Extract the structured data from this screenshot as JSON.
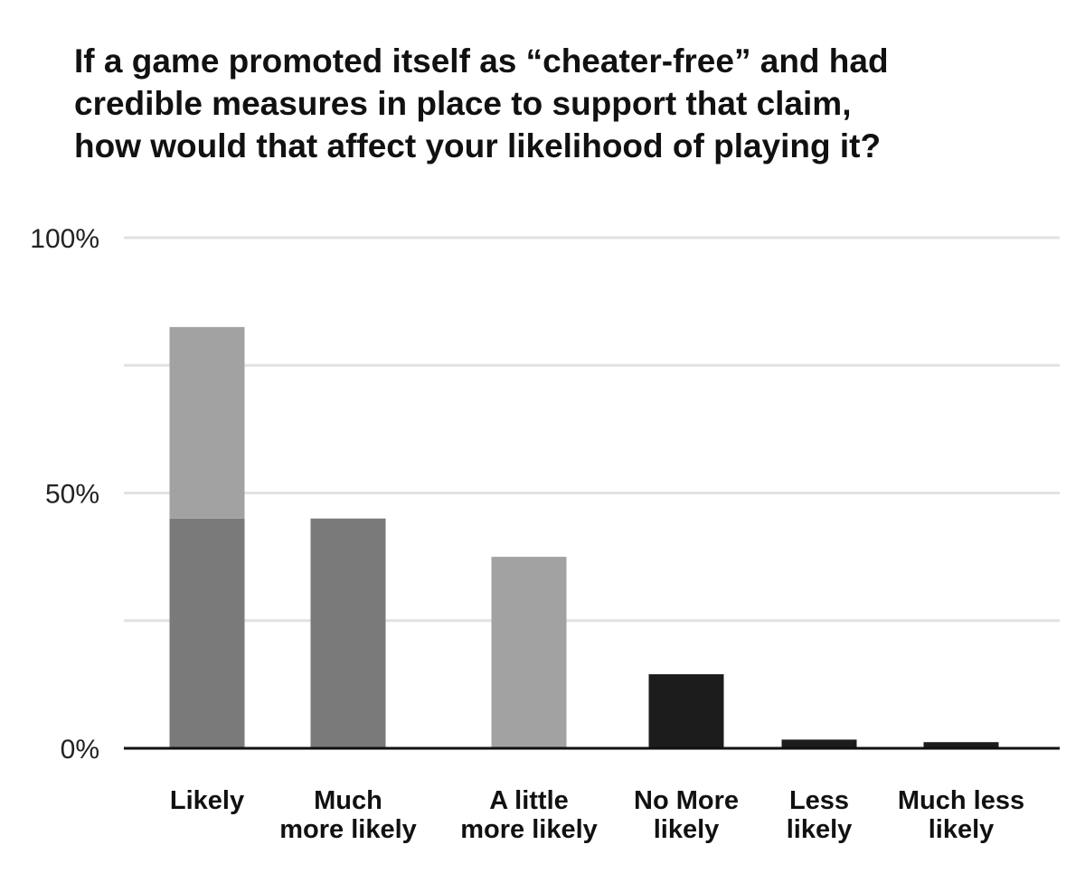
{
  "chart_data": {
    "type": "bar",
    "title_lines": [
      "If a game promoted itself as “cheater-free” and had",
      "credible measures in place to support that claim,",
      "how would that affect your likelihood of playing it?"
    ],
    "categories": [
      [
        "Likely"
      ],
      [
        "Much",
        "more likely"
      ],
      [
        "A little",
        "more likely"
      ],
      [
        "No More",
        "likely"
      ],
      [
        "Less",
        "likely"
      ],
      [
        "Much less",
        "likely"
      ]
    ],
    "bars": [
      {
        "segments": [
          {
            "value": 45,
            "color": "#7a7a7a"
          },
          {
            "value": 37.5,
            "color": "#a2a2a2"
          }
        ]
      },
      {
        "segments": [
          {
            "value": 45,
            "color": "#7a7a7a"
          }
        ]
      },
      {
        "segments": [
          {
            "value": 37.5,
            "color": "#a2a2a2"
          }
        ]
      },
      {
        "segments": [
          {
            "value": 14.5,
            "color": "#1c1c1c"
          }
        ]
      },
      {
        "segments": [
          {
            "value": 1.7,
            "color": "#1c1c1c"
          }
        ]
      },
      {
        "segments": [
          {
            "value": 1.2,
            "color": "#1c1c1c"
          }
        ]
      }
    ],
    "ylim": [
      0,
      100
    ],
    "gridlines": [
      25,
      50,
      75,
      100
    ],
    "yticks": [
      {
        "value": 0,
        "label": "0%"
      },
      {
        "value": 50,
        "label": "50%"
      },
      {
        "value": 100,
        "label": "100%"
      }
    ],
    "grid": true,
    "legend": "none",
    "colors": {
      "grid": "#e2e2e2",
      "axis": "#111111"
    }
  }
}
